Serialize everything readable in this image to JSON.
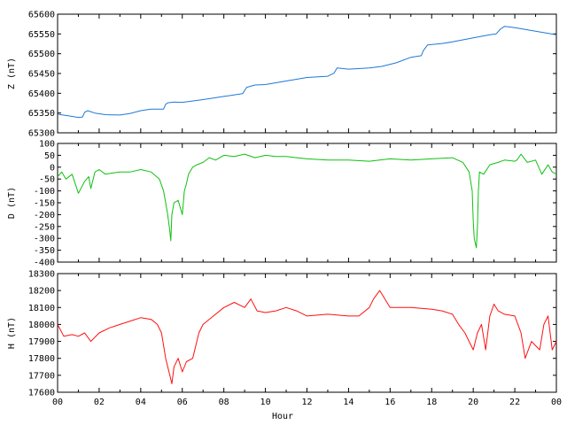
{
  "chart_data": {
    "type": "line",
    "xlabel": "Hour",
    "x_ticks": [
      "00",
      "02",
      "04",
      "06",
      "08",
      "10",
      "12",
      "14",
      "16",
      "18",
      "20",
      "22",
      "00"
    ],
    "xlim": [
      0,
      24
    ],
    "grid": false,
    "panels": [
      {
        "id": "z",
        "ylabel": "Z (nT)",
        "color": "#1e78d8",
        "ylim": [
          65300,
          65600
        ],
        "y_ticks": [
          65300,
          65350,
          65400,
          65450,
          65500,
          65550,
          65600
        ],
        "x": [
          0,
          0.5,
          1.0,
          1.2,
          1.3,
          1.45,
          1.8,
          2.3,
          3.0,
          3.5,
          4.0,
          4.5,
          5.1,
          5.2,
          5.3,
          5.6,
          6.0,
          7.0,
          8.0,
          8.9,
          9.1,
          9.5,
          10.0,
          11.0,
          12.0,
          13.0,
          13.3,
          13.45,
          14.0,
          15.0,
          15.6,
          16.3,
          17.0,
          17.5,
          17.6,
          17.8,
          18.5,
          19.0,
          20.0,
          20.8,
          21.1,
          21.3,
          21.5,
          22.0,
          23.0,
          24.0
        ],
        "values": [
          65347,
          65343,
          65339,
          65340,
          65352,
          65356,
          65350,
          65346,
          65345,
          65349,
          65356,
          65360,
          65360,
          65372,
          65376,
          65378,
          65377,
          65384,
          65392,
          65399,
          65415,
          65421,
          65422,
          65431,
          65440,
          65443,
          65451,
          65464,
          65461,
          65464,
          65468,
          65477,
          65491,
          65495,
          65508,
          65522,
          65526,
          65530,
          65540,
          65548,
          65550,
          65562,
          65569,
          65566,
          65557,
          65548
        ]
      },
      {
        "id": "d",
        "ylabel": "D (nT)",
        "color": "#10c010",
        "ylim": [
          -400,
          100
        ],
        "y_ticks": [
          -400,
          -350,
          -300,
          -250,
          -200,
          -150,
          -100,
          -50,
          0,
          50,
          100
        ],
        "x": [
          0,
          0.2,
          0.4,
          0.7,
          1.0,
          1.3,
          1.5,
          1.6,
          1.8,
          2.0,
          2.3,
          2.6,
          3.0,
          3.5,
          4.0,
          4.5,
          4.9,
          5.1,
          5.2,
          5.3,
          5.4,
          5.45,
          5.5,
          5.6,
          5.8,
          6.0,
          6.1,
          6.2,
          6.3,
          6.5,
          6.7,
          7.0,
          7.3,
          7.6,
          8.0,
          8.5,
          9.0,
          9.5,
          10.0,
          10.5,
          11.0,
          11.5,
          12.0,
          13.0,
          14.0,
          15.0,
          16.0,
          17.0,
          18.0,
          19.0,
          19.5,
          19.8,
          19.95,
          20.0,
          20.05,
          20.15,
          20.2,
          20.25,
          20.3,
          20.5,
          20.8,
          21.2,
          21.5,
          22.0,
          22.1,
          22.3,
          22.6,
          23.0,
          23.3,
          23.6,
          23.8,
          24.0
        ],
        "values": [
          -40,
          -20,
          -50,
          -30,
          -110,
          -60,
          -40,
          -90,
          -20,
          -10,
          -30,
          -25,
          -20,
          -20,
          -10,
          -20,
          -50,
          -100,
          -150,
          -200,
          -270,
          -310,
          -200,
          -150,
          -140,
          -200,
          -100,
          -70,
          -30,
          0,
          10,
          20,
          40,
          30,
          50,
          45,
          55,
          40,
          50,
          45,
          45,
          40,
          35,
          30,
          30,
          25,
          35,
          30,
          35,
          40,
          20,
          -20,
          -100,
          -230,
          -300,
          -340,
          -250,
          -100,
          -20,
          -30,
          10,
          20,
          30,
          25,
          30,
          55,
          20,
          30,
          -30,
          10,
          -20,
          -30
        ]
      },
      {
        "id": "h",
        "ylabel": "H (nT)",
        "color": "#ff1010",
        "ylim": [
          17600,
          18300
        ],
        "y_ticks": [
          17600,
          17700,
          17800,
          17900,
          18000,
          18100,
          18200,
          18300
        ],
        "x": [
          0,
          0.3,
          0.7,
          1.0,
          1.3,
          1.6,
          2.0,
          2.5,
          3.0,
          3.5,
          4.0,
          4.5,
          4.8,
          5.0,
          5.2,
          5.4,
          5.5,
          5.6,
          5.8,
          6.0,
          6.2,
          6.5,
          6.8,
          7.0,
          7.5,
          8.0,
          8.5,
          9.0,
          9.3,
          9.6,
          10.0,
          10.5,
          11.0,
          11.5,
          12.0,
          13.0,
          14.0,
          14.5,
          15.0,
          15.2,
          15.5,
          16.0,
          17.0,
          18.0,
          18.5,
          19.0,
          19.3,
          19.6,
          19.8,
          20.0,
          20.2,
          20.4,
          20.6,
          20.8,
          21.0,
          21.2,
          21.5,
          22.0,
          22.3,
          22.5,
          22.8,
          23.2,
          23.4,
          23.6,
          23.8,
          24.0
        ],
        "values": [
          18000,
          17930,
          17940,
          17930,
          17950,
          17900,
          17950,
          17980,
          18000,
          18020,
          18040,
          18030,
          18000,
          17950,
          17800,
          17700,
          17650,
          17750,
          17800,
          17720,
          17780,
          17800,
          17950,
          18000,
          18050,
          18100,
          18130,
          18100,
          18150,
          18080,
          18070,
          18080,
          18100,
          18080,
          18050,
          18060,
          18050,
          18050,
          18100,
          18150,
          18200,
          18100,
          18100,
          18090,
          18080,
          18060,
          18000,
          17950,
          17900,
          17850,
          17950,
          18000,
          17850,
          18050,
          18120,
          18080,
          18060,
          18050,
          17950,
          17800,
          17900,
          17850,
          18000,
          18050,
          17850,
          17900
        ]
      }
    ]
  }
}
